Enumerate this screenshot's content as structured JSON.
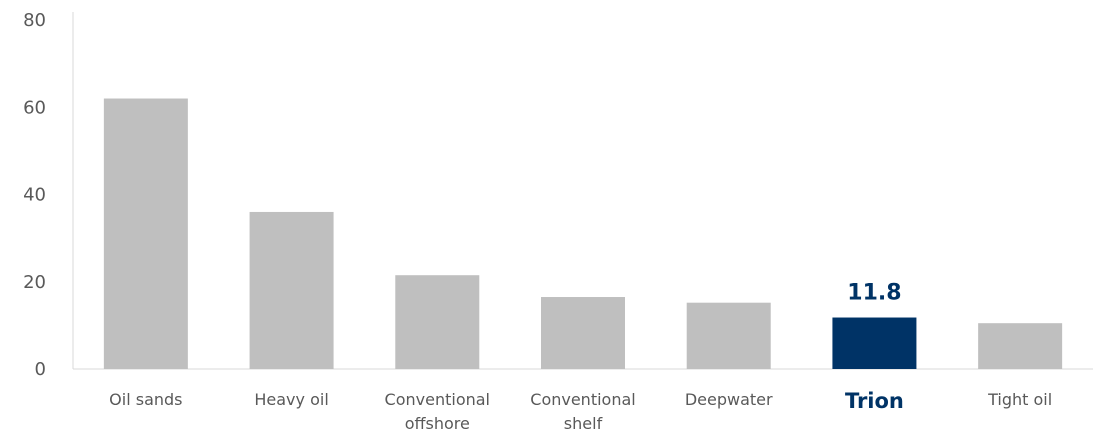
{
  "chart_data": {
    "type": "bar",
    "categories": [
      "Oil sands",
      "Heavy oil",
      "Conventional offshore",
      "Conventional shelf",
      "Deepwater",
      "Trion",
      "Tight oil"
    ],
    "values": [
      62,
      36,
      21.5,
      16.5,
      15.2,
      11.8,
      10.5
    ],
    "ylim": [
      0,
      80
    ],
    "yticks": [
      0,
      20,
      40,
      60,
      80
    ],
    "title": "",
    "xlabel": "",
    "ylabel": "",
    "grid": false,
    "legend": "none",
    "highlight": {
      "category": "Trion",
      "label": "11.8"
    },
    "colors": {
      "bar": "#bfbfbf",
      "highlight": "#003366",
      "axis": "#d9d9d9",
      "tick_text": "#595959"
    }
  }
}
